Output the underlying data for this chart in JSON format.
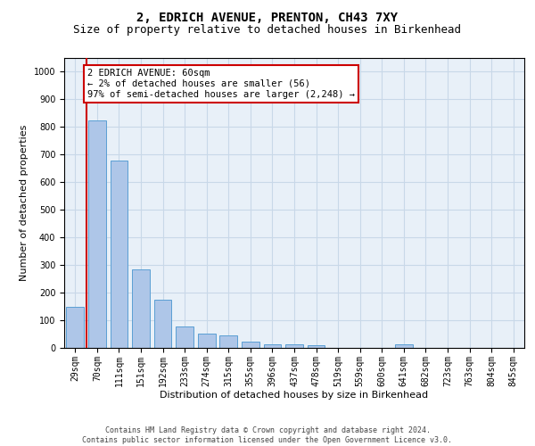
{
  "title": "2, EDRICH AVENUE, PRENTON, CH43 7XY",
  "subtitle": "Size of property relative to detached houses in Birkenhead",
  "xlabel": "Distribution of detached houses by size in Birkenhead",
  "ylabel": "Number of detached properties",
  "categories": [
    "29sqm",
    "70sqm",
    "111sqm",
    "151sqm",
    "192sqm",
    "233sqm",
    "274sqm",
    "315sqm",
    "355sqm",
    "396sqm",
    "437sqm",
    "478sqm",
    "519sqm",
    "559sqm",
    "600sqm",
    "641sqm",
    "682sqm",
    "723sqm",
    "763sqm",
    "804sqm",
    "845sqm"
  ],
  "values": [
    150,
    825,
    680,
    283,
    175,
    78,
    53,
    45,
    22,
    12,
    12,
    10,
    0,
    0,
    0,
    12,
    0,
    0,
    0,
    0,
    0
  ],
  "bar_color": "#aec6e8",
  "bar_edge_color": "#5a9fd4",
  "highlight_line_color": "#cc0000",
  "annotation_text": "2 EDRICH AVENUE: 60sqm\n← 2% of detached houses are smaller (56)\n97% of semi-detached houses are larger (2,248) →",
  "annotation_box_color": "#ffffff",
  "annotation_box_edge_color": "#cc0000",
  "ylim": [
    0,
    1050
  ],
  "yticks": [
    0,
    100,
    200,
    300,
    400,
    500,
    600,
    700,
    800,
    900,
    1000
  ],
  "grid_color": "#c8d8e8",
  "background_color": "#e8f0f8",
  "footer_line1": "Contains HM Land Registry data © Crown copyright and database right 2024.",
  "footer_line2": "Contains public sector information licensed under the Open Government Licence v3.0.",
  "title_fontsize": 10,
  "subtitle_fontsize": 9,
  "xlabel_fontsize": 8,
  "ylabel_fontsize": 8,
  "tick_fontsize": 7,
  "footer_fontsize": 6,
  "annotation_fontsize": 7.5
}
